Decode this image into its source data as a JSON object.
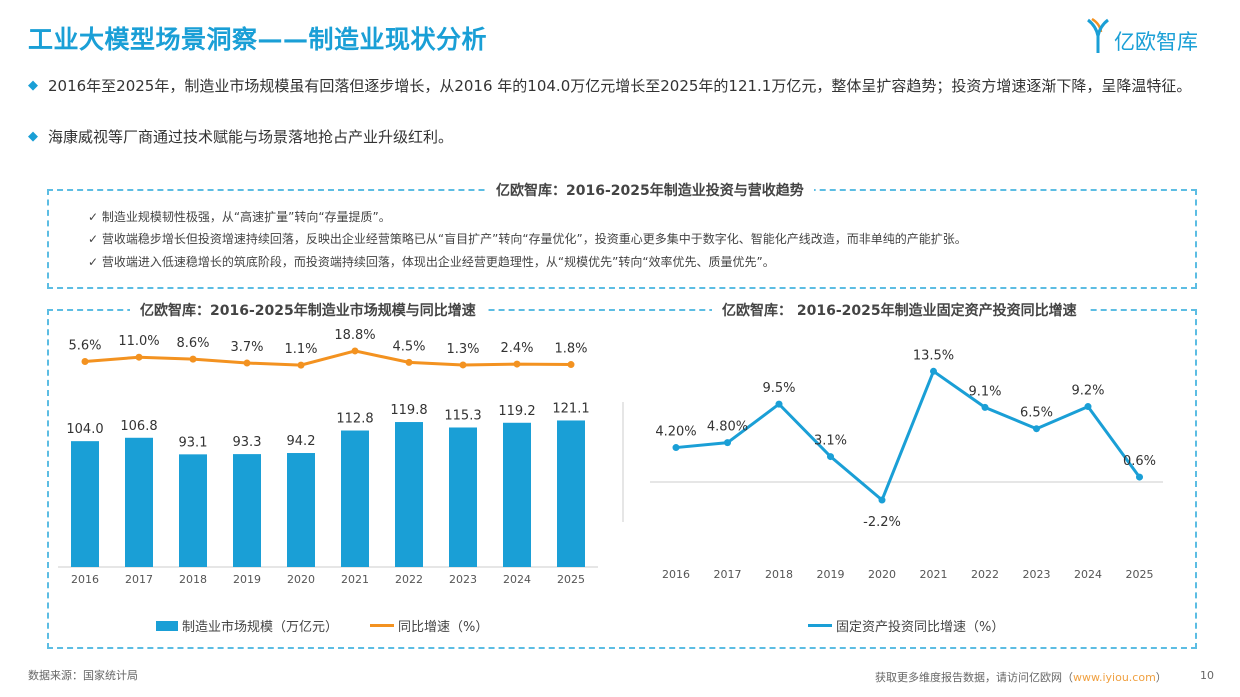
{
  "header": {
    "title": "工业大模型场景洞察——制造业现状分析",
    "logo_text": "亿欧智库"
  },
  "bullets": [
    "2016年至2025年，制造业市场规模虽有回落但逐步增长，从2016 年的104.0万亿元增长至2025年的121.1万亿元，整体呈扩容趋势；投资方增速逐渐下降，呈降温特征。",
    "海康威视等厂商通过技术赋能与场景落地抢占产业升级红利。"
  ],
  "summary_box": {
    "title": "亿欧智库：2016-2025年制造业投资与营收趋势",
    "check_icon": "✓",
    "items": [
      "制造业规模韧性极强，从“高速扩量”转向“存量提质”。",
      "营收端稳步增长但投资增速持续回落，反映出企业经营策略已从“盲目扩产”转向“存量优化”，投资重心更多集中于数字化、智能化产线改造，而非单纯的产能扩张。",
      "营收端进入低速稳增长的筑底阶段，而投资端持续回落，体现出企业经营更趋理性，从“规模优先”转向“效率优先、质量优先”。"
    ]
  },
  "chart_data": [
    {
      "type": "bar+line",
      "title": "亿欧智库：2016-2025年制造业市场规模与同比增速",
      "categories": [
        "2016",
        "2017",
        "2018",
        "2019",
        "2020",
        "2021",
        "2022",
        "2023",
        "2024",
        "2025"
      ],
      "series": [
        {
          "name": "制造业市场规模（万亿元）",
          "type": "bar",
          "color": "#1a9fd6",
          "values": [
            104.0,
            106.8,
            93.1,
            93.3,
            94.2,
            112.8,
            119.8,
            115.3,
            119.2,
            121.1
          ],
          "labels": [
            "104.0",
            "106.8",
            "93.1",
            "93.3",
            "94.2",
            "112.8",
            "119.8",
            "115.3",
            "119.2",
            "121.1"
          ]
        },
        {
          "name": "同比增速（%）",
          "type": "line",
          "color": "#f39220",
          "values": [
            5.6,
            11.0,
            8.6,
            3.7,
            1.1,
            18.8,
            4.5,
            1.3,
            2.4,
            1.8
          ],
          "labels": [
            "5.6%",
            "11.0%",
            "8.6%",
            "3.7%",
            "1.1%",
            "18.8%",
            "4.5%",
            "1.3%",
            "2.4%",
            "1.8%"
          ]
        }
      ],
      "legend": "bottom"
    },
    {
      "type": "line",
      "title": "亿欧智库： 2016-2025年制造业固定资产投资同比增速",
      "categories": [
        "2016",
        "2017",
        "2018",
        "2019",
        "2020",
        "2021",
        "2022",
        "2023",
        "2024",
        "2025"
      ],
      "series": [
        {
          "name": "固定资产投资同比增速（%）",
          "color": "#1a9fd6",
          "values": [
            4.2,
            4.8,
            9.5,
            3.1,
            -2.2,
            13.5,
            9.1,
            6.5,
            9.2,
            0.6
          ],
          "labels": [
            "4.20%",
            "4.80%",
            "9.5%",
            "3.1%",
            "-2.2%",
            "13.5%",
            "9.1%",
            "6.5%",
            "9.2%",
            "0.6%"
          ]
        }
      ],
      "legend": "bottom"
    }
  ],
  "footer": {
    "source": "数据来源：国家统计局",
    "cta": "获取更多维度报告数据，请访问亿欧网（",
    "link": "www.iyiou.com",
    "cta_end": "）",
    "page": "10"
  }
}
